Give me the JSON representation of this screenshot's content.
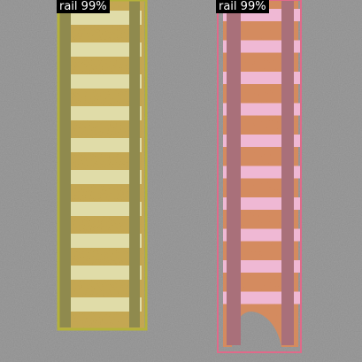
{
  "detections": [
    {
      "label_text": "rail 99%",
      "box_color": "#b5b23a",
      "mask_color": "#c9b04a",
      "sleeper_color": "#e0dca8"
    },
    {
      "label_text": "rail 99%",
      "box_color": "#e06a8a",
      "mask_color": "#d98a72",
      "sleeper_color": "#efb8d4"
    }
  ],
  "background_color": "#8e8e8e"
}
